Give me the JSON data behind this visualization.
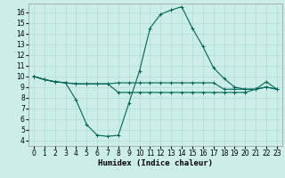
{
  "xlabel": "Humidex (Indice chaleur)",
  "bg_color": "#cceee8",
  "grid_color": "#b8ddd8",
  "line_color": "#006655",
  "xlim": [
    -0.5,
    23.5
  ],
  "ylim": [
    3.5,
    16.8
  ],
  "xticks": [
    0,
    1,
    2,
    3,
    4,
    5,
    6,
    7,
    8,
    9,
    10,
    11,
    12,
    13,
    14,
    15,
    16,
    17,
    18,
    19,
    20,
    21,
    22,
    23
  ],
  "yticks": [
    4,
    5,
    6,
    7,
    8,
    9,
    10,
    11,
    12,
    13,
    14,
    15,
    16
  ],
  "line1_x": [
    0,
    1,
    2,
    3,
    4,
    5,
    6,
    7,
    8,
    9,
    10,
    11,
    12,
    13,
    14,
    15,
    16,
    17,
    18,
    19,
    20,
    21,
    22,
    23
  ],
  "line1_y": [
    10,
    9.7,
    9.5,
    9.4,
    9.3,
    9.3,
    9.3,
    9.3,
    9.4,
    9.4,
    9.4,
    9.4,
    9.4,
    9.4,
    9.4,
    9.4,
    9.4,
    9.4,
    8.8,
    8.8,
    8.8,
    8.8,
    9.0,
    8.8
  ],
  "line2_x": [
    0,
    1,
    2,
    3,
    4,
    5,
    6,
    7,
    8,
    9,
    10,
    11,
    12,
    13,
    14,
    15,
    16,
    17,
    18,
    19,
    20,
    21,
    22,
    23
  ],
  "line2_y": [
    10,
    9.7,
    9.5,
    9.4,
    7.8,
    5.5,
    4.5,
    4.4,
    4.5,
    7.5,
    10.5,
    14.5,
    15.8,
    16.2,
    16.5,
    14.5,
    12.8,
    10.8,
    9.8,
    9.0,
    8.8,
    8.8,
    9.5,
    8.8
  ],
  "line3_x": [
    0,
    1,
    2,
    3,
    4,
    5,
    6,
    7,
    8,
    9,
    10,
    11,
    12,
    13,
    14,
    15,
    16,
    17,
    18,
    19,
    20,
    21,
    22,
    23
  ],
  "line3_y": [
    10,
    9.7,
    9.5,
    9.4,
    9.3,
    9.3,
    9.3,
    9.3,
    8.5,
    8.5,
    8.5,
    8.5,
    8.5,
    8.5,
    8.5,
    8.5,
    8.5,
    8.5,
    8.5,
    8.5,
    8.5,
    8.8,
    9.0,
    8.8
  ],
  "tick_fontsize": 5.5,
  "xlabel_fontsize": 6.5
}
